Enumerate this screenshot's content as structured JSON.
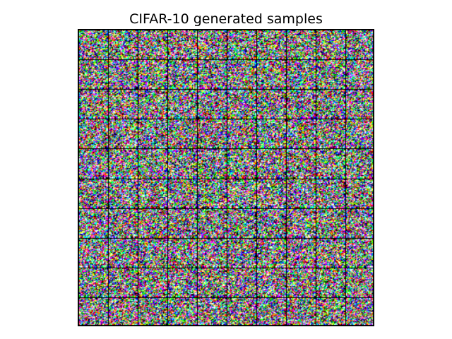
{
  "figure": {
    "title": "CIFAR-10 generated samples"
  },
  "image_grid": {
    "rows": 10,
    "cols": 10,
    "tile_pixels": 32,
    "tile_border_color": "#000000",
    "frame_color": "#000000",
    "content": "random-noise",
    "palette": [
      "#000000",
      "#0000ff",
      "#00ff00",
      "#00ffff",
      "#ff0000",
      "#ff00ff",
      "#ffff00",
      "#ffffff"
    ]
  },
  "colors": {
    "background": "#ffffff",
    "title_text": "#000000"
  }
}
